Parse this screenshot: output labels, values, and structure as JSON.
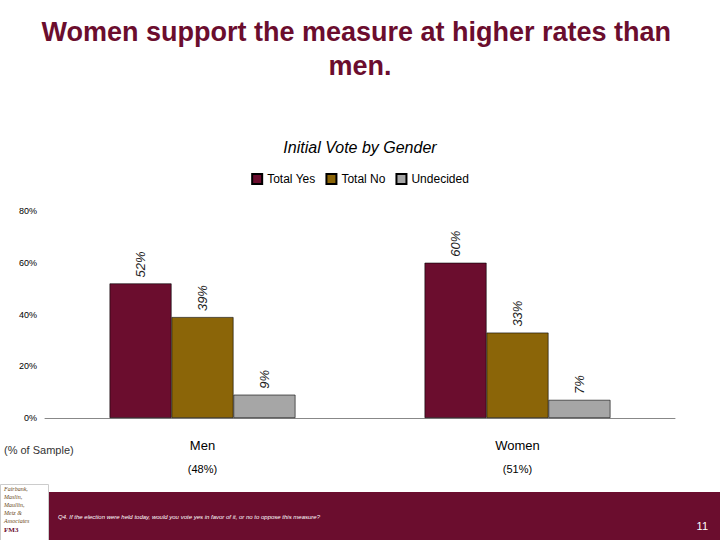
{
  "chart_data": {
    "type": "bar",
    "title": "Women support the measure at higher rates than men.",
    "subtitle": "Initial Vote by Gender",
    "categories": [
      "Men",
      "Women"
    ],
    "sample": [
      "(48%)",
      "(51%)"
    ],
    "sample_label": "(% of Sample)",
    "series": [
      {
        "name": "Total Yes",
        "color": "#6b0d2e",
        "values": [
          52,
          60
        ],
        "value_labels": [
          "52%",
          "60%"
        ]
      },
      {
        "name": "Total No",
        "color": "#8b6508",
        "values": [
          39,
          33
        ],
        "value_labels": [
          "39%",
          "33%"
        ]
      },
      {
        "name": "Undecided",
        "color": "#a6a6a6",
        "values": [
          9,
          7
        ],
        "value_labels": [
          "9%",
          "7%"
        ]
      }
    ],
    "ylim": [
      0,
      80
    ],
    "yticks": [
      {
        "value": 0,
        "label": "0%"
      },
      {
        "value": 20,
        "label": "20%"
      },
      {
        "value": 40,
        "label": "40%"
      },
      {
        "value": 60,
        "label": "60%"
      },
      {
        "value": 80,
        "label": "80%"
      }
    ],
    "grid": false,
    "legend": "top",
    "data_labels": true,
    "footnote": "Q4. If the election were held today, would you vote yes in favor of it, or no to oppose this measure?",
    "page_number": "11",
    "logo": [
      "Fairbank,",
      "Maslin,",
      "Maullin,",
      "Metz &",
      "Associates",
      "FM3"
    ]
  }
}
